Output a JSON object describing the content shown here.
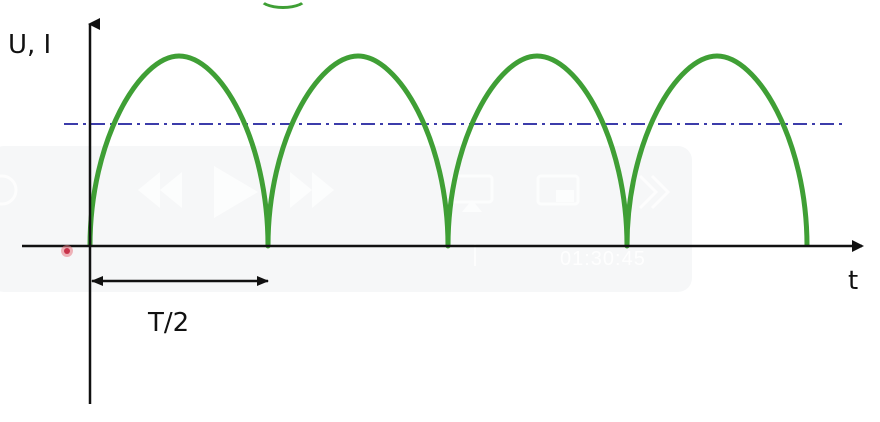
{
  "labels": {
    "y_axis": "U, I",
    "x_axis": "t",
    "period": "T/2"
  },
  "player": {
    "time": "01:30:45",
    "icons": [
      "rewind-icon",
      "play-icon",
      "fast-forward-icon",
      "airplay-icon",
      "picture-in-picture-icon",
      "skip-forward-icon"
    ]
  },
  "colors": {
    "curve": "#3f9f35",
    "dashed_line": "#3c3caa",
    "axes": "#111111"
  },
  "chart_data": {
    "type": "line",
    "curve": "rectified sine (|sin|)",
    "half_periods_shown": 4,
    "dashed_level_fraction_of_peak": 0.64
  }
}
